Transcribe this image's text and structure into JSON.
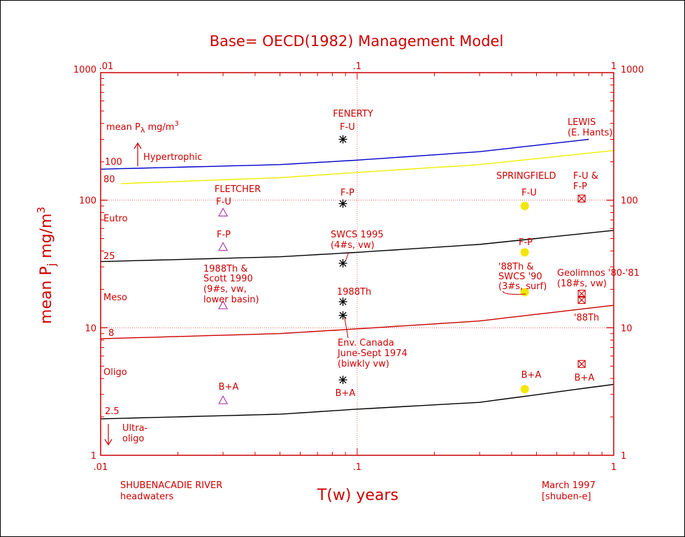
{
  "colors": {
    "axis": "#cc0000",
    "trophic_upper": "#0000cc",
    "yellow_curve": "#eeee00",
    "black_curve": "#000000",
    "red_curve": "#cc0000",
    "fletcher": "#b040b0",
    "point_yellow": "#f2e600"
  },
  "chart_data": {
    "type": "scatter",
    "title": "Base= OECD(1982) Management Model",
    "xlabel": "T(w) years",
    "ylabel": "mean P_j mg/m^3",
    "xscale": "log",
    "yscale": "log",
    "xlim": [
      0.01,
      1
    ],
    "ylim": [
      1,
      1000
    ],
    "x_ticks_bottom": [
      ".01",
      ".1",
      "1"
    ],
    "x_ticks_top": [
      ".01",
      ".1",
      "1"
    ],
    "y_ticks_left": [
      "1",
      "10",
      "100",
      "1000"
    ],
    "y_ticks_right": [
      "1",
      "10",
      "100",
      "1000"
    ],
    "grid": "dotted lines at x=0.1, y=10, y=100",
    "curves": [
      {
        "name": "100",
        "x": [
          0.01,
          0.05,
          0.1,
          0.3,
          0.8
        ],
        "y": [
          175,
          190,
          206,
          240,
          300
        ],
        "color": "#0000cc"
      },
      {
        "name": "80",
        "x": [
          0.012,
          0.05,
          0.1,
          0.3,
          1
        ],
        "y": [
          135,
          150,
          165,
          190,
          245
        ],
        "color": "#eeee00"
      },
      {
        "name": "25",
        "x": [
          0.01,
          0.05,
          0.1,
          0.3,
          1
        ],
        "y": [
          33,
          36,
          39,
          45,
          58
        ],
        "color": "#000000"
      },
      {
        "name": "8",
        "x": [
          0.01,
          0.05,
          0.1,
          0.3,
          1
        ],
        "y": [
          8.2,
          9.0,
          9.8,
          11.3,
          15
        ],
        "color": "#cc0000"
      },
      {
        "name": "2.5",
        "x": [
          0.01,
          0.05,
          0.1,
          0.3,
          1
        ],
        "y": [
          1.93,
          2.1,
          2.3,
          2.6,
          3.6
        ],
        "color": "#000000"
      }
    ],
    "points": [
      {
        "site": "FLETCHER",
        "label": "F-U",
        "x": 0.03,
        "y": 80,
        "marker": "triangle"
      },
      {
        "site": "FLETCHER",
        "label": "F-P",
        "x": 0.03,
        "y": 43,
        "marker": "triangle"
      },
      {
        "site": "FLETCHER",
        "label": "1988Th & Scott 1990",
        "x": 0.03,
        "y": 15,
        "marker": "triangle"
      },
      {
        "site": "FLETCHER",
        "label": "B+A",
        "x": 0.03,
        "y": 2.7,
        "marker": "triangle"
      },
      {
        "site": "FENERTY",
        "label": "F-U",
        "x": 0.088,
        "y": 300,
        "marker": "asterisk"
      },
      {
        "site": "FENERTY",
        "label": "F-P",
        "x": 0.088,
        "y": 94,
        "marker": "asterisk"
      },
      {
        "site": "FENERTY",
        "label": "SWCS 1995",
        "x": 0.088,
        "y": 32,
        "marker": "asterisk"
      },
      {
        "site": "FENERTY",
        "label": "1988Th",
        "x": 0.088,
        "y": 16,
        "marker": "asterisk"
      },
      {
        "site": "FENERTY",
        "label": "Env. Canada",
        "x": 0.088,
        "y": 12.5,
        "marker": "asterisk"
      },
      {
        "site": "FENERTY",
        "label": "B+A",
        "x": 0.088,
        "y": 3.9,
        "marker": "asterisk"
      },
      {
        "site": "SPRINGFIELD",
        "label": "F-U",
        "x": 0.45,
        "y": 90,
        "marker": "circle"
      },
      {
        "site": "SPRINGFIELD",
        "label": "F-P",
        "x": 0.45,
        "y": 39,
        "marker": "circle"
      },
      {
        "site": "SPRINGFIELD",
        "label": "'88Th & SWCS '90",
        "x": 0.45,
        "y": 19,
        "marker": "circle"
      },
      {
        "site": "SPRINGFIELD",
        "label": "B+A",
        "x": 0.45,
        "y": 3.3,
        "marker": "circle"
      },
      {
        "site": "LEWIS",
        "label": "F-U & F-P",
        "x": 0.75,
        "y": 103,
        "marker": "boxx"
      },
      {
        "site": "LEWIS",
        "label": "Geolimnos",
        "x": 0.75,
        "y": 18.5,
        "marker": "boxx"
      },
      {
        "site": "LEWIS",
        "label": "'88Th",
        "x": 0.75,
        "y": 16.5,
        "marker": "boxx"
      },
      {
        "site": "LEWIS",
        "label": "B+A",
        "x": 0.75,
        "y": 5.2,
        "marker": "boxx"
      }
    ]
  },
  "text": {
    "legend_mean": "mean P",
    "legend_sub": "λ",
    "legend_unit": " mg/m",
    "legend_sup": "3",
    "hypertrophic": "Hypertrophic",
    "eutro": "Eutro",
    "meso": "Meso",
    "oligo": "Oligo",
    "ultra1": "Ultra-",
    "ultra2": "oligo",
    "c100": "100",
    "c80": "80",
    "c25": "25",
    "c8": "8",
    "c25b": "2.5",
    "fenerty": "FENERTY",
    "fen_fu": "F-U",
    "fen_fp": "F-P",
    "swcs1": "SWCS 1995",
    "swcs2": "(4#s, vw)",
    "th1988": "1988Th",
    "env1": "Env. Canada",
    "env2": "June-Sept 1974",
    "env3": "(biwkly vw)",
    "fen_ba": "B+A",
    "fletcher": "FLETCHER",
    "fl_fu": "F-U",
    "fl_fp": "F-P",
    "fl_n1": "1988Th &",
    "fl_n2": "Scott 1990",
    "fl_n3": "(9#s, vw,",
    "fl_n4": "lower basin)",
    "fl_ba": "B+A",
    "lewis1": "LEWIS",
    "lewis2": "(E. Hants)",
    "springfield": "SPRINGFIELD",
    "sp_fu": "F-U",
    "sp_fp": "F-P",
    "sp_n1": "'88Th &",
    "sp_n2": "SWCS '90",
    "sp_n3": "(3#s, surf)",
    "sp_ba": "B+A",
    "lw_fu1": "F-U &",
    "lw_fu2": "F-P",
    "geo1": "Geolimnos '80-'81",
    "geo2": "(18#s, vw)",
    "th88": "'88Th",
    "lw_ba": "B+A",
    "foot_left1": "SHUBENACADIE RIVER",
    "foot_left2": "headwaters",
    "foot_right1": "March 1997",
    "foot_right2": "[shuben-e]",
    "ylabel_main": "mean P",
    "ylabel_sub": "j",
    "ylabel_unit": " mg/m",
    "ylabel_sup": "3"
  }
}
